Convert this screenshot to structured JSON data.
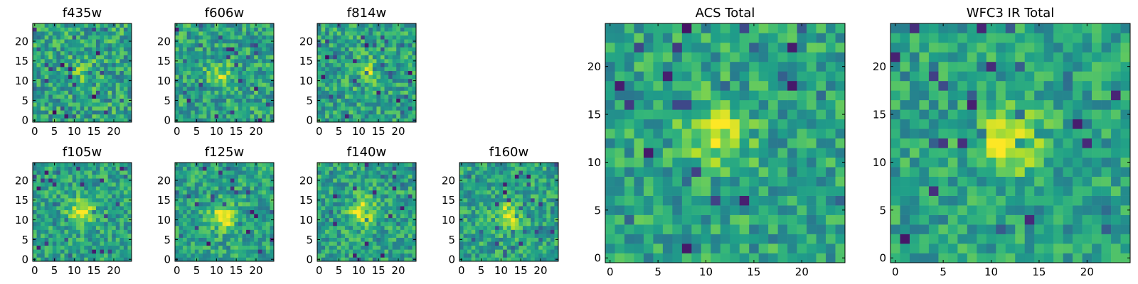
{
  "chart_data": [
    {
      "type": "heatmap",
      "title": "f435w",
      "xlim": [
        0,
        24
      ],
      "ylim": [
        0,
        24
      ],
      "xticks": [
        "0",
        "5",
        "10",
        "15",
        "20"
      ],
      "yticks": [
        "0",
        "5",
        "10",
        "15",
        "20"
      ],
      "colormap": "viridis",
      "grid_size": 25,
      "source_peak": [
        12,
        12
      ],
      "source_strength": 0.15
    },
    {
      "type": "heatmap",
      "title": "f606w",
      "xlim": [
        0,
        24
      ],
      "ylim": [
        0,
        24
      ],
      "xticks": [
        "0",
        "5",
        "10",
        "15",
        "20"
      ],
      "yticks": [
        "0",
        "5",
        "10",
        "15",
        "20"
      ],
      "colormap": "viridis",
      "grid_size": 25,
      "source_peak": [
        11,
        12
      ],
      "source_strength": 0.25
    },
    {
      "type": "heatmap",
      "title": "f814w",
      "xlim": [
        0,
        24
      ],
      "ylim": [
        0,
        24
      ],
      "xticks": [
        "0",
        "5",
        "10",
        "15",
        "20"
      ],
      "yticks": [
        "0",
        "5",
        "10",
        "15",
        "20"
      ],
      "colormap": "viridis",
      "grid_size": 25,
      "source_peak": [
        12,
        12
      ],
      "source_strength": 0.3
    },
    {
      "type": "heatmap",
      "title": "f105w",
      "xlim": [
        0,
        24
      ],
      "ylim": [
        0,
        24
      ],
      "xticks": [
        "0",
        "5",
        "10",
        "15",
        "20"
      ],
      "yticks": [
        "0",
        "5",
        "10",
        "15",
        "20"
      ],
      "colormap": "viridis",
      "grid_size": 25,
      "source_peak": [
        12,
        12
      ],
      "source_strength": 0.45
    },
    {
      "type": "heatmap",
      "title": "f125w",
      "xlim": [
        0,
        24
      ],
      "ylim": [
        0,
        24
      ],
      "xticks": [
        "0",
        "5",
        "10",
        "15",
        "20"
      ],
      "yticks": [
        "0",
        "5",
        "10",
        "15",
        "20"
      ],
      "colormap": "viridis",
      "grid_size": 25,
      "source_peak": [
        12,
        11
      ],
      "source_strength": 0.45
    },
    {
      "type": "heatmap",
      "title": "f140w",
      "xlim": [
        0,
        24
      ],
      "ylim": [
        0,
        24
      ],
      "xticks": [
        "0",
        "5",
        "10",
        "15",
        "20"
      ],
      "yticks": [
        "0",
        "5",
        "10",
        "15",
        "20"
      ],
      "colormap": "viridis",
      "grid_size": 25,
      "source_peak": [
        11,
        12
      ],
      "source_strength": 0.4
    },
    {
      "type": "heatmap",
      "title": "f160w",
      "xlim": [
        0,
        24
      ],
      "ylim": [
        0,
        24
      ],
      "xticks": [
        "0",
        "5",
        "10",
        "15",
        "20"
      ],
      "yticks": [
        "0",
        "5",
        "10",
        "15",
        "20"
      ],
      "colormap": "viridis",
      "grid_size": 25,
      "source_peak": [
        12,
        11
      ],
      "source_strength": 0.4
    },
    {
      "type": "heatmap",
      "title": "ACS Total",
      "xlim": [
        0,
        24
      ],
      "ylim": [
        0,
        24
      ],
      "xticks": [
        "0",
        "5",
        "10",
        "15",
        "20"
      ],
      "yticks": [
        "0",
        "5",
        "10",
        "15",
        "20"
      ],
      "colormap": "viridis",
      "grid_size": 25,
      "source_peak": [
        11,
        13
      ],
      "source_strength": 0.4
    },
    {
      "type": "heatmap",
      "title": "WFC3 IR Total",
      "xlim": [
        0,
        24
      ],
      "ylim": [
        0,
        24
      ],
      "xticks": [
        "0",
        "5",
        "10",
        "15",
        "20"
      ],
      "yticks": [
        "0",
        "5",
        "10",
        "15",
        "20"
      ],
      "colormap": "viridis",
      "grid_size": 25,
      "source_peak": [
        12,
        12
      ],
      "source_strength": 0.5
    }
  ]
}
